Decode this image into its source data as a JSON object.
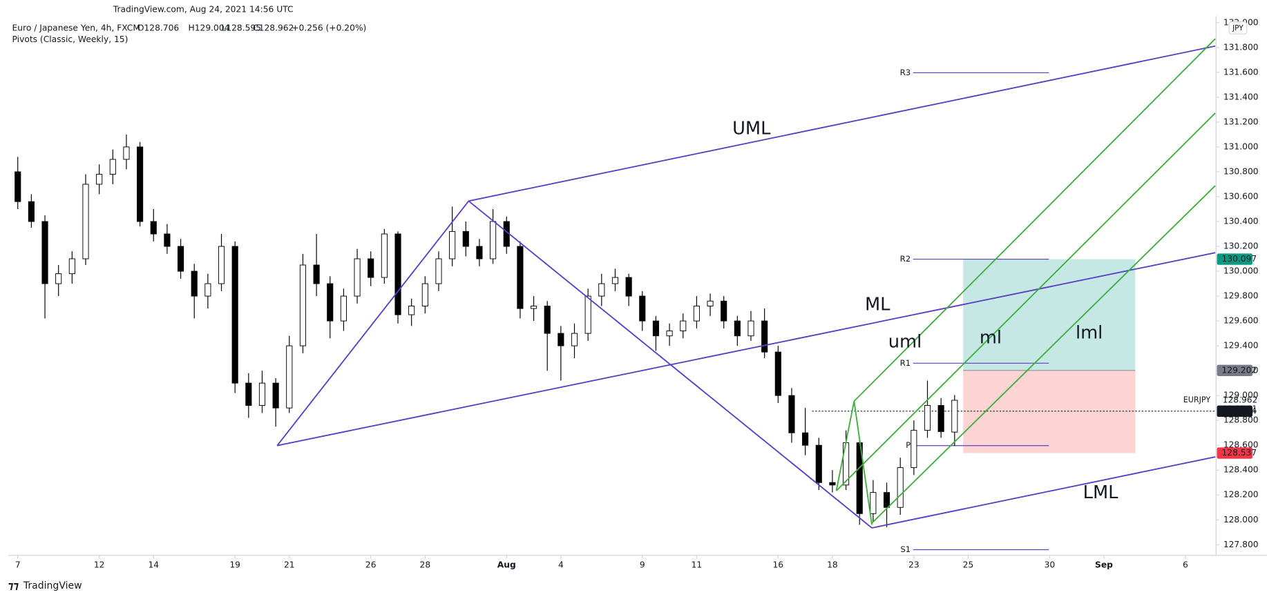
{
  "header": {
    "watermark": "TradingView.com, Aug 24, 2021 14:56 UTC",
    "symbol": "Euro / Japanese Yen, 4h, FXCM",
    "ohlc": [
      "O128.706",
      "H129.004",
      "L128.595",
      "C128.962",
      "+0.256 (+0.20%)"
    ],
    "indicator": "Pivots (Classic, Weekly, 15)",
    "currency": "JPY",
    "logo": "TradingView"
  },
  "chart_data": {
    "type": "candlestick",
    "up_color": "#ffffff",
    "down_color": "#000000",
    "xlim": [
      -0.357,
      44.1
    ],
    "ylim": [
      127.714,
      132.052
    ],
    "xticks": [
      {
        "value": 0,
        "label": "7"
      },
      {
        "value": 3,
        "label": "12"
      },
      {
        "value": 5,
        "label": "14"
      },
      {
        "value": 8,
        "label": "19"
      },
      {
        "value": 10,
        "label": "21"
      },
      {
        "value": 13,
        "label": "26"
      },
      {
        "value": 15,
        "label": "28"
      },
      {
        "value": 18,
        "label": "Aug"
      },
      {
        "value": 20,
        "label": "4"
      },
      {
        "value": 23,
        "label": "9"
      },
      {
        "value": 25,
        "label": "11"
      },
      {
        "value": 28,
        "label": "16"
      },
      {
        "value": 30,
        "label": "18"
      },
      {
        "value": 33,
        "label": "23"
      },
      {
        "value": 35,
        "label": "25"
      },
      {
        "value": 38,
        "label": "30"
      },
      {
        "value": 40,
        "label": "Sep"
      },
      {
        "value": 43,
        "label": "6"
      }
    ],
    "yticks": [
      {
        "value": 127.8,
        "label": "127.800"
      },
      {
        "value": 128,
        "label": "128.000"
      },
      {
        "value": 128.2,
        "label": "128.200"
      },
      {
        "value": 128.4,
        "label": "128.400"
      },
      {
        "value": 128.6,
        "label": "128.600"
      },
      {
        "value": 128.8,
        "label": "128.800"
      },
      {
        "value": 129,
        "label": "129.000"
      },
      {
        "value": 129.2,
        "label": "129.200"
      },
      {
        "value": 129.4,
        "label": "129.400"
      },
      {
        "value": 129.6,
        "label": "129.600"
      },
      {
        "value": 129.8,
        "label": "129.800"
      },
      {
        "value": 130,
        "label": "130.000"
      },
      {
        "value": 130.2,
        "label": "130.200"
      },
      {
        "value": 130.4,
        "label": "130.400"
      },
      {
        "value": 130.6,
        "label": "130.600"
      },
      {
        "value": 130.8,
        "label": "130.800"
      },
      {
        "value": 131,
        "label": "131.000"
      },
      {
        "value": 131.2,
        "label": "131.200"
      },
      {
        "value": 131.4,
        "label": "131.400"
      },
      {
        "value": 131.6,
        "label": "131.600"
      },
      {
        "value": 131.8,
        "label": "131.800"
      },
      {
        "value": 132,
        "label": "132.000"
      }
    ],
    "candles": [
      [
        0,
        130.8,
        130.92,
        130.5,
        130.56
      ],
      [
        0.5,
        130.56,
        130.62,
        130.35,
        130.4
      ],
      [
        1,
        130.4,
        130.45,
        129.62,
        129.9
      ],
      [
        1.5,
        129.9,
        130.05,
        129.8,
        129.98
      ],
      [
        2,
        129.98,
        130.16,
        129.9,
        130.1
      ],
      [
        2.5,
        130.1,
        130.78,
        130.05,
        130.7
      ],
      [
        3,
        130.7,
        130.86,
        130.62,
        130.78
      ],
      [
        3.5,
        130.78,
        130.98,
        130.7,
        130.9
      ],
      [
        4,
        130.9,
        131.1,
        130.82,
        131
      ],
      [
        4.5,
        131,
        131.04,
        130.36,
        130.4
      ],
      [
        5,
        130.4,
        130.5,
        130.24,
        130.3
      ],
      [
        5.5,
        130.3,
        130.38,
        130.14,
        130.2
      ],
      [
        6,
        130.2,
        130.26,
        129.94,
        130
      ],
      [
        6.5,
        130,
        130.06,
        129.62,
        129.8
      ],
      [
        7,
        129.8,
        129.98,
        129.7,
        129.9
      ],
      [
        7.5,
        129.9,
        130.3,
        129.84,
        130.2
      ],
      [
        8,
        130.2,
        130.24,
        129.02,
        129.1
      ],
      [
        8.5,
        129.1,
        129.18,
        128.82,
        128.92
      ],
      [
        9,
        128.92,
        129.2,
        128.86,
        129.1
      ],
      [
        9.5,
        129.1,
        129.14,
        128.75,
        128.9
      ],
      [
        10,
        128.9,
        129.48,
        128.86,
        129.4
      ],
      [
        10.5,
        129.4,
        130.14,
        129.34,
        130.05
      ],
      [
        11,
        130.05,
        130.3,
        129.8,
        129.9
      ],
      [
        11.5,
        129.9,
        129.96,
        129.46,
        129.6
      ],
      [
        12,
        129.6,
        129.86,
        129.52,
        129.8
      ],
      [
        12.5,
        129.8,
        130.18,
        129.74,
        130.1
      ],
      [
        13,
        130.1,
        130.16,
        129.88,
        129.95
      ],
      [
        13.5,
        129.95,
        130.34,
        129.9,
        130.3
      ],
      [
        14,
        130.3,
        130.32,
        129.58,
        129.65
      ],
      [
        14.5,
        129.65,
        129.78,
        129.56,
        129.72
      ],
      [
        15,
        129.72,
        129.96,
        129.66,
        129.9
      ],
      [
        15.5,
        129.9,
        130.16,
        129.84,
        130.1
      ],
      [
        16,
        130.1,
        130.52,
        130.04,
        130.32
      ],
      [
        16.5,
        130.32,
        130.4,
        130.12,
        130.2
      ],
      [
        17,
        130.2,
        130.26,
        130.04,
        130.1
      ],
      [
        17.5,
        130.1,
        130.5,
        130.06,
        130.4
      ],
      [
        18,
        130.4,
        130.44,
        130.14,
        130.2
      ],
      [
        18.5,
        130.2,
        130.24,
        129.62,
        129.7
      ],
      [
        19,
        129.7,
        129.8,
        129.6,
        129.72
      ],
      [
        19.5,
        129.72,
        129.76,
        129.2,
        129.5
      ],
      [
        20,
        129.5,
        129.56,
        129.12,
        129.4
      ],
      [
        20.5,
        129.4,
        129.58,
        129.3,
        129.5
      ],
      [
        21,
        129.5,
        129.86,
        129.44,
        129.8
      ],
      [
        21.5,
        129.8,
        129.98,
        129.72,
        129.9
      ],
      [
        22,
        129.9,
        130.02,
        129.84,
        129.95
      ],
      [
        22.5,
        129.95,
        129.98,
        129.72,
        129.8
      ],
      [
        23,
        129.8,
        129.84,
        129.52,
        129.6
      ],
      [
        23.5,
        129.6,
        129.64,
        129.36,
        129.48
      ],
      [
        24,
        129.48,
        129.58,
        129.4,
        129.52
      ],
      [
        24.5,
        129.52,
        129.66,
        129.46,
        129.6
      ],
      [
        25,
        129.6,
        129.8,
        129.54,
        129.72
      ],
      [
        25.5,
        129.72,
        129.82,
        129.64,
        129.76
      ],
      [
        26,
        129.76,
        129.8,
        129.54,
        129.6
      ],
      [
        26.5,
        129.6,
        129.64,
        129.4,
        129.48
      ],
      [
        27,
        129.48,
        129.68,
        129.44,
        129.6
      ],
      [
        27.5,
        129.6,
        129.7,
        129.3,
        129.35
      ],
      [
        28,
        129.35,
        129.4,
        128.94,
        129
      ],
      [
        28.5,
        129,
        129.06,
        128.62,
        128.7
      ],
      [
        29,
        128.7,
        128.9,
        128.52,
        128.6
      ],
      [
        29.5,
        128.6,
        128.66,
        128.24,
        128.3
      ],
      [
        30,
        128.3,
        128.4,
        128.22,
        128.28
      ],
      [
        30.5,
        128.28,
        128.72,
        128.24,
        128.62
      ],
      [
        31,
        128.62,
        128.66,
        127.96,
        128.05
      ],
      [
        31.5,
        128.05,
        128.32,
        127.98,
        128.22
      ],
      [
        32,
        128.22,
        128.3,
        127.94,
        128.1
      ],
      [
        32.5,
        128.1,
        128.5,
        128.04,
        128.42
      ],
      [
        33,
        128.42,
        128.8,
        128.36,
        128.72
      ],
      [
        33.5,
        128.72,
        129.12,
        128.66,
        128.92
      ],
      [
        34,
        128.92,
        128.98,
        128.66,
        128.71
      ],
      [
        34.5,
        128.706,
        129.004,
        128.595,
        128.962
      ]
    ],
    "pivots": [
      {
        "label": "R3",
        "value": 131.597,
        "color": "#5b3fc4"
      },
      {
        "label": "R2",
        "value": 130.097,
        "color": "#5b3fc4"
      },
      {
        "label": "R1",
        "value": 129.26,
        "color": "#5b3fc4"
      },
      {
        "label": "P",
        "value": 128.597,
        "color": "#5b3fc4"
      },
      {
        "label": "S1",
        "value": 127.76,
        "color": "#5b3fc4"
      }
    ],
    "annotations": [
      "UML",
      "ML",
      "uml",
      "ml",
      "lml",
      "LML"
    ],
    "position": {
      "target": 130.097,
      "entry": 129.202,
      "stop": 128.537,
      "profit_color": "#c6e8e4",
      "loss_color": "#fbd4d3"
    },
    "last_price": {
      "symbol": "EURJPY",
      "value": 128.962,
      "countdown": "02:03:21"
    },
    "price_tags": [
      {
        "value": 130.097,
        "color": "#089981"
      },
      {
        "value": 129.202,
        "color": "#787b86"
      },
      {
        "value": 128.874,
        "color": "#131722"
      },
      {
        "value": 128.537,
        "color": "#f23645"
      }
    ]
  }
}
